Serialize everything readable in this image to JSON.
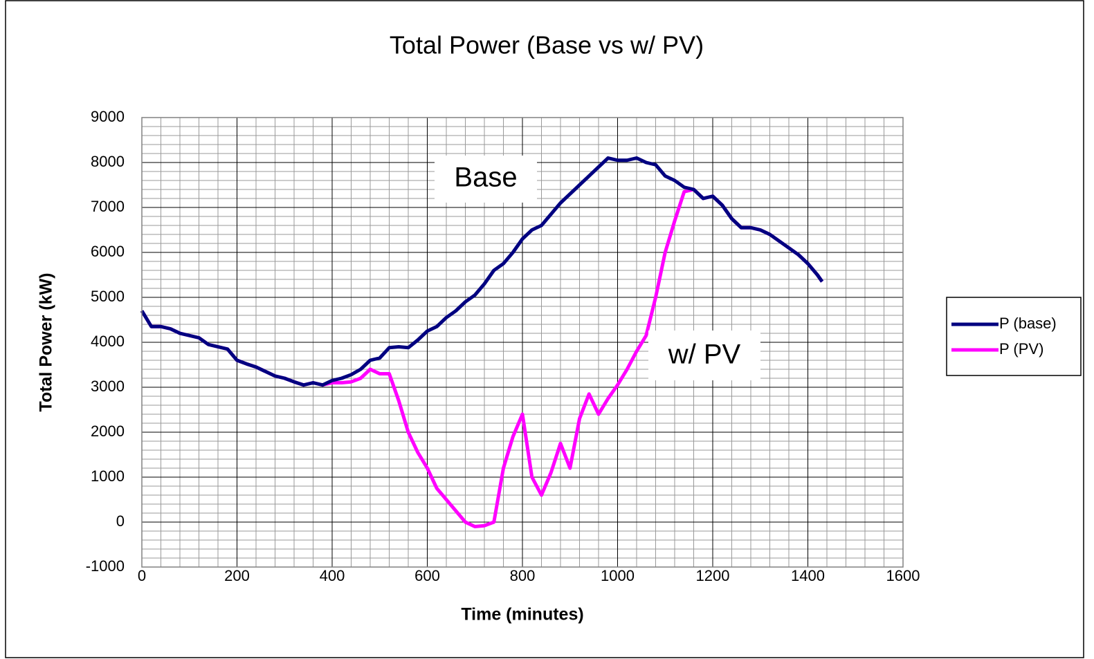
{
  "chart_data": {
    "type": "line",
    "title": "Total Power (Base vs w/ PV)",
    "xlabel": "Time (minutes)",
    "ylabel": "Total Power (kW)",
    "annotations": [
      "Base",
      "w/ PV"
    ],
    "x": [
      0,
      20,
      40,
      60,
      80,
      100,
      120,
      140,
      160,
      180,
      200,
      220,
      240,
      260,
      280,
      300,
      320,
      340,
      360,
      380,
      400,
      420,
      440,
      460,
      480,
      500,
      520,
      540,
      560,
      580,
      600,
      620,
      640,
      660,
      680,
      700,
      720,
      740,
      760,
      780,
      800,
      820,
      840,
      860,
      880,
      900,
      920,
      940,
      960,
      980,
      1000,
      1020,
      1040,
      1060,
      1080,
      1100,
      1120,
      1140,
      1160,
      1180,
      1200,
      1220,
      1240,
      1260,
      1280,
      1300,
      1320,
      1340,
      1360,
      1380,
      1400,
      1420,
      1430
    ],
    "series": [
      {
        "name": "P (base)",
        "color": "#000080",
        "values": [
          4700,
          4350,
          4350,
          4300,
          4200,
          4150,
          4100,
          3950,
          3900,
          3850,
          3600,
          3520,
          3450,
          3350,
          3250,
          3200,
          3120,
          3050,
          3100,
          3050,
          3150,
          3200,
          3280,
          3400,
          3600,
          3650,
          3880,
          3900,
          3880,
          4050,
          4250,
          4350,
          4550,
          4700,
          4900,
          5050,
          5300,
          5600,
          5750,
          6000,
          6300,
          6500,
          6600,
          6850,
          7100,
          7300,
          7500,
          7700,
          7900,
          8100,
          8050,
          8050,
          8100,
          8000,
          7950,
          7700,
          7600,
          7450,
          7400,
          7200,
          7250,
          7050,
          6750,
          6550,
          6550,
          6500,
          6400,
          6250,
          6100,
          5950,
          5750,
          5500,
          5350
        ]
      },
      {
        "name": "P (PV)",
        "color": "#ff00ff",
        "values": [
          4700,
          4350,
          4350,
          4300,
          4200,
          4150,
          4100,
          3950,
          3900,
          3850,
          3600,
          3520,
          3450,
          3350,
          3250,
          3200,
          3120,
          3050,
          3100,
          3050,
          3100,
          3100,
          3120,
          3200,
          3400,
          3300,
          3300,
          2700,
          2000,
          1550,
          1200,
          750,
          500,
          250,
          0,
          -100,
          -80,
          0,
          1200,
          1900,
          2400,
          1000,
          600,
          1100,
          1750,
          1200,
          2300,
          2850,
          2400,
          2750,
          3050,
          3400,
          3800,
          4150,
          5000,
          6000,
          6700,
          7350,
          7400,
          7200,
          7250,
          7050,
          6750,
          6550,
          6550,
          6500,
          6400,
          6250,
          6100,
          5950,
          5750,
          5500,
          5350
        ]
      }
    ],
    "xlim": [
      0,
      1600
    ],
    "xticks": [
      0,
      200,
      400,
      600,
      800,
      1000,
      1200,
      1400,
      1600
    ],
    "ylim": [
      -1000,
      9000
    ],
    "yticks": [
      -1000,
      0,
      1000,
      2000,
      3000,
      4000,
      5000,
      6000,
      7000,
      8000,
      9000
    ],
    "grid": true,
    "legend": "right"
  }
}
